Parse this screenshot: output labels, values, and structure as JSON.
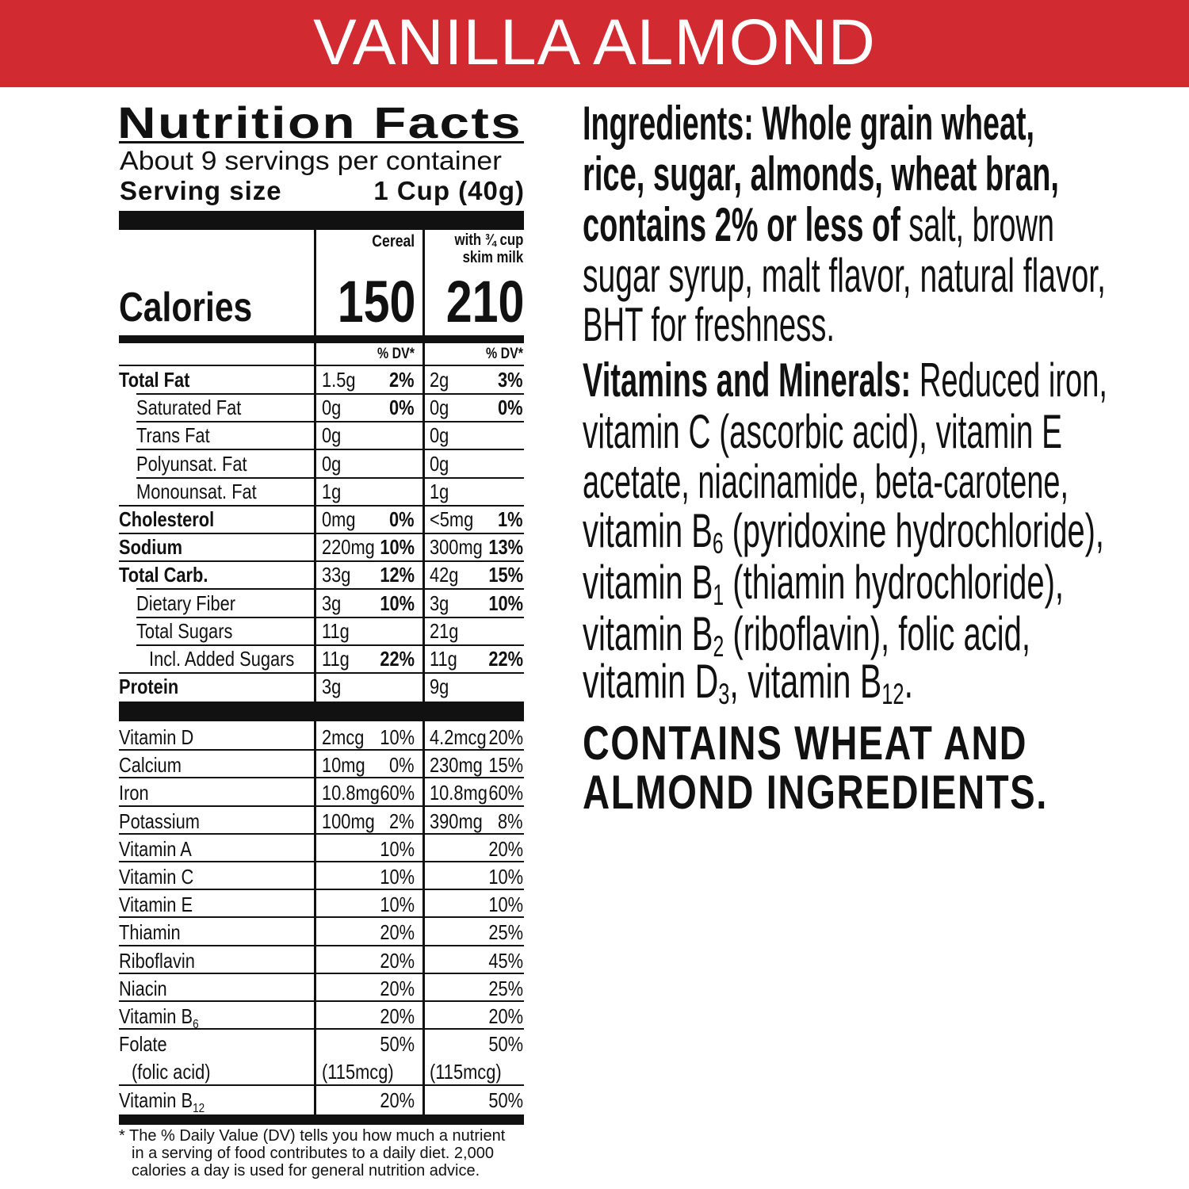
{
  "banner": {
    "title": "VANILLA ALMOND",
    "color": "#d12a31"
  },
  "nutrition": {
    "title": "Nutrition Facts",
    "servings": "About 9 servings per container",
    "serving_size_label": "Serving size",
    "serving_size_value": "1 Cup (40g)",
    "calories_label": "Calories",
    "col_cereal": "Cereal",
    "col_milk_line1": "with ¾ cup",
    "col_milk_line2": "skim milk",
    "calories_cereal": "150",
    "calories_milk": "210",
    "dv_header": "% DV*",
    "nutrients": [
      {
        "name": "Total Fat",
        "level": 0,
        "bold": true,
        "c_amt": "1.5g",
        "c_dv": "2%",
        "m_amt": "2g",
        "m_dv": "3%"
      },
      {
        "name": "Saturated Fat",
        "level": 1,
        "bold": false,
        "c_amt": "0g",
        "c_dv": "0%",
        "m_amt": "0g",
        "m_dv": "0%"
      },
      {
        "name": "Trans Fat",
        "level": 1,
        "bold": false,
        "c_amt": "0g",
        "c_dv": "",
        "m_amt": "0g",
        "m_dv": ""
      },
      {
        "name": "Polyunsat. Fat",
        "level": 1,
        "bold": false,
        "c_amt": "0g",
        "c_dv": "",
        "m_amt": "0g",
        "m_dv": ""
      },
      {
        "name": "Monounsat. Fat",
        "level": 1,
        "bold": false,
        "c_amt": "1g",
        "c_dv": "",
        "m_amt": "1g",
        "m_dv": ""
      },
      {
        "name": "Cholesterol",
        "level": 0,
        "bold": true,
        "c_amt": "0mg",
        "c_dv": "0%",
        "m_amt": "<5mg",
        "m_dv": "1%"
      },
      {
        "name": "Sodium",
        "level": 0,
        "bold": true,
        "c_amt": "220mg",
        "c_dv": "10%",
        "m_amt": "300mg",
        "m_dv": "13%"
      },
      {
        "name": "Total Carb.",
        "level": 0,
        "bold": true,
        "c_amt": "33g",
        "c_dv": "12%",
        "m_amt": "42g",
        "m_dv": "15%"
      },
      {
        "name": "Dietary Fiber",
        "level": 1,
        "bold": false,
        "c_amt": "3g",
        "c_dv": "10%",
        "m_amt": "3g",
        "m_dv": "10%"
      },
      {
        "name": "Total Sugars",
        "level": 1,
        "bold": false,
        "c_amt": "11g",
        "c_dv": "",
        "m_amt": "21g",
        "m_dv": ""
      },
      {
        "name": "Incl. Added Sugars",
        "level": 2,
        "bold": false,
        "c_amt": "11g",
        "c_dv": "22%",
        "m_amt": "11g",
        "m_dv": "22%"
      },
      {
        "name": "Protein",
        "level": 0,
        "bold": true,
        "c_amt": "3g",
        "c_dv": "",
        "m_amt": "9g",
        "m_dv": ""
      }
    ],
    "vitamins": [
      {
        "name": "Vitamin D",
        "sub": "",
        "c_amt": "2mcg",
        "c_dv": "10%",
        "m_amt": "4.2mcg",
        "m_dv": "20%"
      },
      {
        "name": "Calcium",
        "sub": "",
        "c_amt": "10mg",
        "c_dv": "0%",
        "m_amt": "230mg",
        "m_dv": "15%"
      },
      {
        "name": "Iron",
        "sub": "",
        "c_amt": "10.8mg",
        "c_dv": "60%",
        "m_amt": "10.8mg",
        "m_dv": "60%"
      },
      {
        "name": "Potassium",
        "sub": "",
        "c_amt": "100mg",
        "c_dv": "2%",
        "m_amt": "390mg",
        "m_dv": "8%"
      },
      {
        "name": "Vitamin A",
        "sub": "",
        "c_amt": "",
        "c_dv": "10%",
        "m_amt": "",
        "m_dv": "20%"
      },
      {
        "name": "Vitamin C",
        "sub": "",
        "c_amt": "",
        "c_dv": "10%",
        "m_amt": "",
        "m_dv": "10%"
      },
      {
        "name": "Vitamin E",
        "sub": "",
        "c_amt": "",
        "c_dv": "10%",
        "m_amt": "",
        "m_dv": "10%"
      },
      {
        "name": "Thiamin",
        "sub": "",
        "c_amt": "",
        "c_dv": "20%",
        "m_amt": "",
        "m_dv": "25%"
      },
      {
        "name": "Riboflavin",
        "sub": "",
        "c_amt": "",
        "c_dv": "20%",
        "m_amt": "",
        "m_dv": "45%"
      },
      {
        "name": "Niacin",
        "sub": "",
        "c_amt": "",
        "c_dv": "20%",
        "m_amt": "",
        "m_dv": "25%"
      },
      {
        "name": "Vitamin B",
        "sub": "6",
        "c_amt": "",
        "c_dv": "20%",
        "m_amt": "",
        "m_dv": "20%"
      },
      {
        "name": "Folate",
        "sub": "",
        "c_amt": "",
        "c_dv": "50%",
        "m_amt": "",
        "m_dv": "50%",
        "line2": "(folic acid)",
        "c_line2": "(115mcg)",
        "m_line2": "(115mcg)"
      },
      {
        "name": "Vitamin B",
        "sub": "12",
        "c_amt": "",
        "c_dv": "20%",
        "m_amt": "",
        "m_dv": "50%"
      }
    ],
    "footnote": [
      "* The % Daily Value (DV) tells you how much a nutrient",
      "in a serving of food contributes to a daily diet. 2,000",
      "calories a day is used for general nutrition advice."
    ]
  },
  "ingredients": {
    "lines": [
      [
        {
          "t": "Ingredients: Whole grain wheat,",
          "b": true
        }
      ],
      [
        {
          "t": "rice, sugar, almonds, wheat bran,",
          "b": true
        }
      ],
      [
        {
          "t": "contains 2% or less of",
          "b": true
        },
        {
          "t": " salt, brown"
        }
      ],
      [
        {
          "t": "sugar syrup, malt flavor, natural flavor,"
        }
      ],
      [
        {
          "t": "BHT for freshness."
        }
      ],
      [
        {
          "t": "Vitamins and Minerals:",
          "b": true
        },
        {
          "t": " Reduced iron,"
        }
      ],
      [
        {
          "t": "vitamin C (ascorbic acid), vitamin E"
        }
      ],
      [
        {
          "t": "acetate, niacinamide, beta-carotene,"
        }
      ],
      [
        {
          "t": "vitamin B"
        },
        {
          "t": "6",
          "s": true
        },
        {
          "t": " (pyridoxine hydrochloride),"
        }
      ],
      [
        {
          "t": "vitamin B"
        },
        {
          "t": "1",
          "s": true
        },
        {
          "t": " (thiamin hydrochloride),"
        }
      ],
      [
        {
          "t": "vitamin B"
        },
        {
          "t": "2",
          "s": true
        },
        {
          "t": " (riboflavin), folic acid,"
        }
      ],
      [
        {
          "t": "vitamin D"
        },
        {
          "t": "3",
          "s": true
        },
        {
          "t": ", vitamin B"
        },
        {
          "t": "12",
          "s": true
        },
        {
          "t": "."
        }
      ]
    ],
    "allergen": [
      "CONTAINS WHEAT AND",
      "ALMOND INGREDIENTS."
    ]
  }
}
